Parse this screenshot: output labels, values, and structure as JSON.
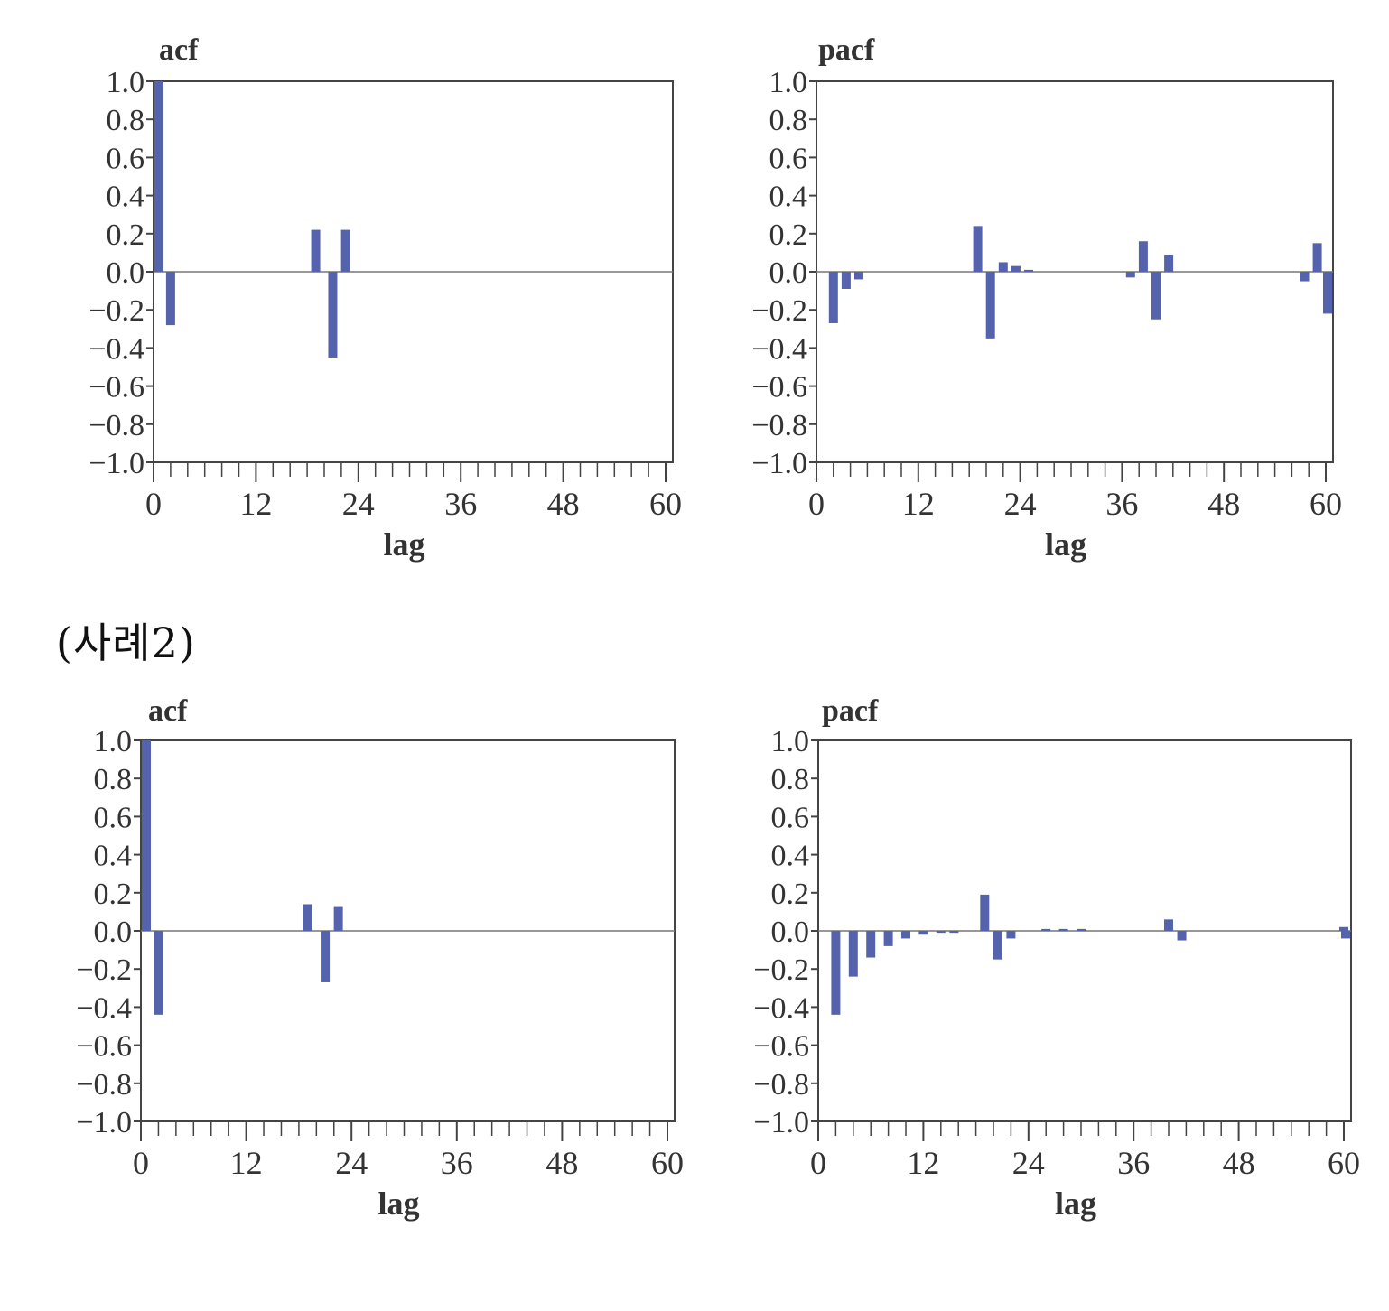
{
  "section_label": "(사례2)",
  "colors": {
    "bar": "#5563ac",
    "frame": "#444444",
    "zero_line": "#777777",
    "text": "#333333"
  },
  "chart_data": [
    {
      "type": "bar",
      "title": "acf",
      "xlabel": "lag",
      "ylabel": "",
      "xlim": [
        0,
        60
      ],
      "ylim": [
        -1.0,
        1.0
      ],
      "xticks": [
        0,
        12,
        24,
        36,
        48,
        60
      ],
      "yticks": [
        1.0,
        0.8,
        0.6,
        0.4,
        0.2,
        0.0,
        -0.2,
        -0.4,
        -0.6,
        -0.8,
        -1.0
      ],
      "ytick_labels": [
        "1.0",
        "0.8",
        "0.6",
        "0.4",
        "0.2",
        "0.0",
        "−0.2",
        "−0.4",
        "−0.6",
        "−0.8",
        "−1.0"
      ],
      "grid": false,
      "bars": [
        {
          "x": 0,
          "y": 1.0
        },
        {
          "x": 2,
          "y": -0.28
        },
        {
          "x": 19,
          "y": 0.22
        },
        {
          "x": 21,
          "y": -0.45
        },
        {
          "x": 22.5,
          "y": 0.22
        }
      ]
    },
    {
      "type": "bar",
      "title": "pacf",
      "xlabel": "lag",
      "ylabel": "",
      "xlim": [
        0,
        60
      ],
      "ylim": [
        -1.0,
        1.0
      ],
      "xticks": [
        0,
        12,
        24,
        36,
        48,
        60
      ],
      "yticks": [
        1.0,
        0.8,
        0.6,
        0.4,
        0.2,
        0.0,
        -0.2,
        -0.4,
        -0.6,
        -0.8,
        -1.0
      ],
      "ytick_labels": [
        "1.0",
        "0.8",
        "0.6",
        "0.4",
        "0.2",
        "0.0",
        "−0.2",
        "−0.4",
        "−0.6",
        "−0.8",
        "−1.0"
      ],
      "grid": false,
      "bars": [
        {
          "x": 2,
          "y": -0.27
        },
        {
          "x": 3.5,
          "y": -0.09
        },
        {
          "x": 5,
          "y": -0.04
        },
        {
          "x": 19,
          "y": 0.24
        },
        {
          "x": 20.5,
          "y": -0.35
        },
        {
          "x": 22,
          "y": 0.05
        },
        {
          "x": 23.5,
          "y": 0.03
        },
        {
          "x": 25,
          "y": 0.01
        },
        {
          "x": 37,
          "y": -0.03
        },
        {
          "x": 38.5,
          "y": 0.16
        },
        {
          "x": 40,
          "y": -0.25
        },
        {
          "x": 41.5,
          "y": 0.09
        },
        {
          "x": 57.5,
          "y": -0.05
        },
        {
          "x": 59,
          "y": 0.15
        },
        {
          "x": 60.5,
          "y": -0.22
        }
      ]
    },
    {
      "type": "bar",
      "title": "acf",
      "xlabel": "lag",
      "ylabel": "",
      "xlim": [
        0,
        60
      ],
      "ylim": [
        -1.0,
        1.0
      ],
      "xticks": [
        0,
        12,
        24,
        36,
        48,
        60
      ],
      "yticks": [
        1.0,
        0.8,
        0.6,
        0.4,
        0.2,
        0.0,
        -0.2,
        -0.4,
        -0.6,
        -0.8,
        -1.0
      ],
      "ytick_labels": [
        "1.0",
        "0.8",
        "0.6",
        "0.4",
        "0.2",
        "0.0",
        "−0.2",
        "−0.4",
        "−0.6",
        "−0.8",
        "−1.0"
      ],
      "grid": false,
      "bars": [
        {
          "x": 0,
          "y": 1.0
        },
        {
          "x": 2,
          "y": -0.44
        },
        {
          "x": 19,
          "y": 0.14
        },
        {
          "x": 21,
          "y": -0.27
        },
        {
          "x": 22.5,
          "y": 0.13
        }
      ]
    },
    {
      "type": "bar",
      "title": "pacf",
      "xlabel": "lag",
      "ylabel": "",
      "xlim": [
        0,
        60
      ],
      "ylim": [
        -1.0,
        1.0
      ],
      "xticks": [
        0,
        12,
        24,
        36,
        48,
        60
      ],
      "yticks": [
        1.0,
        0.8,
        0.6,
        0.4,
        0.2,
        0.0,
        -0.2,
        -0.4,
        -0.6,
        -0.8,
        -1.0
      ],
      "ytick_labels": [
        "1.0",
        "0.8",
        "0.6",
        "0.4",
        "0.2",
        "0.0",
        "−0.2",
        "−0.4",
        "−0.6",
        "−0.8",
        "−1.0"
      ],
      "grid": false,
      "bars": [
        {
          "x": 2,
          "y": -0.44
        },
        {
          "x": 4,
          "y": -0.24
        },
        {
          "x": 6,
          "y": -0.14
        },
        {
          "x": 8,
          "y": -0.08
        },
        {
          "x": 10,
          "y": -0.04
        },
        {
          "x": 12,
          "y": -0.02
        },
        {
          "x": 14,
          "y": -0.01
        },
        {
          "x": 15.5,
          "y": -0.01
        },
        {
          "x": 19,
          "y": 0.19
        },
        {
          "x": 20.5,
          "y": -0.15
        },
        {
          "x": 22,
          "y": -0.04
        },
        {
          "x": 26,
          "y": 0.01
        },
        {
          "x": 28,
          "y": 0.01
        },
        {
          "x": 30,
          "y": 0.01
        },
        {
          "x": 40,
          "y": 0.06
        },
        {
          "x": 41.5,
          "y": -0.05
        },
        {
          "x": 60,
          "y": 0.02
        },
        {
          "x": 61.5,
          "y": -0.04
        }
      ]
    }
  ]
}
